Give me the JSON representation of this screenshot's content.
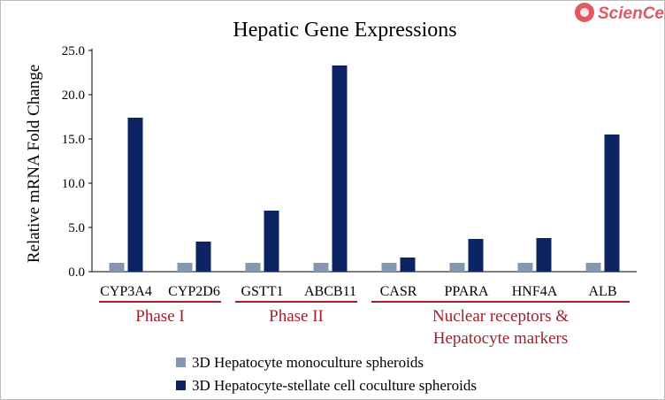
{
  "logo": {
    "text": "ScienCell"
  },
  "chart_data": {
    "type": "bar",
    "title": "Hepatic Gene Expressions",
    "ylabel": "Relative mRNA Fold Change",
    "xlabel": "",
    "ylim": [
      0,
      25
    ],
    "yticks": [
      "0.0",
      "5.0",
      "10.0",
      "15.0",
      "20.0",
      "25.0"
    ],
    "grid": false,
    "categories": [
      "CYP3A4",
      "CYP2D6",
      "GSTT1",
      "ABCB11",
      "CASR",
      "PPARA",
      "HNF4A",
      "ALB"
    ],
    "series": [
      {
        "name": "3D Hepatocyte monoculture spheroids",
        "color": "#8497b0",
        "values": [
          1,
          1,
          1,
          1,
          1,
          1,
          1,
          1
        ]
      },
      {
        "name": "3D Hepatocyte-stellate cell coculture spheroids",
        "color": "#0d2463",
        "values": [
          17.4,
          3.4,
          6.9,
          23.3,
          1.6,
          3.7,
          3.8,
          15.5
        ]
      }
    ],
    "groups": [
      {
        "lines": [
          "Phase I"
        ],
        "from": 0,
        "to": 1
      },
      {
        "lines": [
          "Phase II"
        ],
        "from": 2,
        "to": 3
      },
      {
        "lines": [
          "Nuclear receptors &",
          "Hepatocyte markers"
        ],
        "from": 4,
        "to": 7
      }
    ],
    "group_color": "#a0202c",
    "legend_position": "bottom"
  }
}
